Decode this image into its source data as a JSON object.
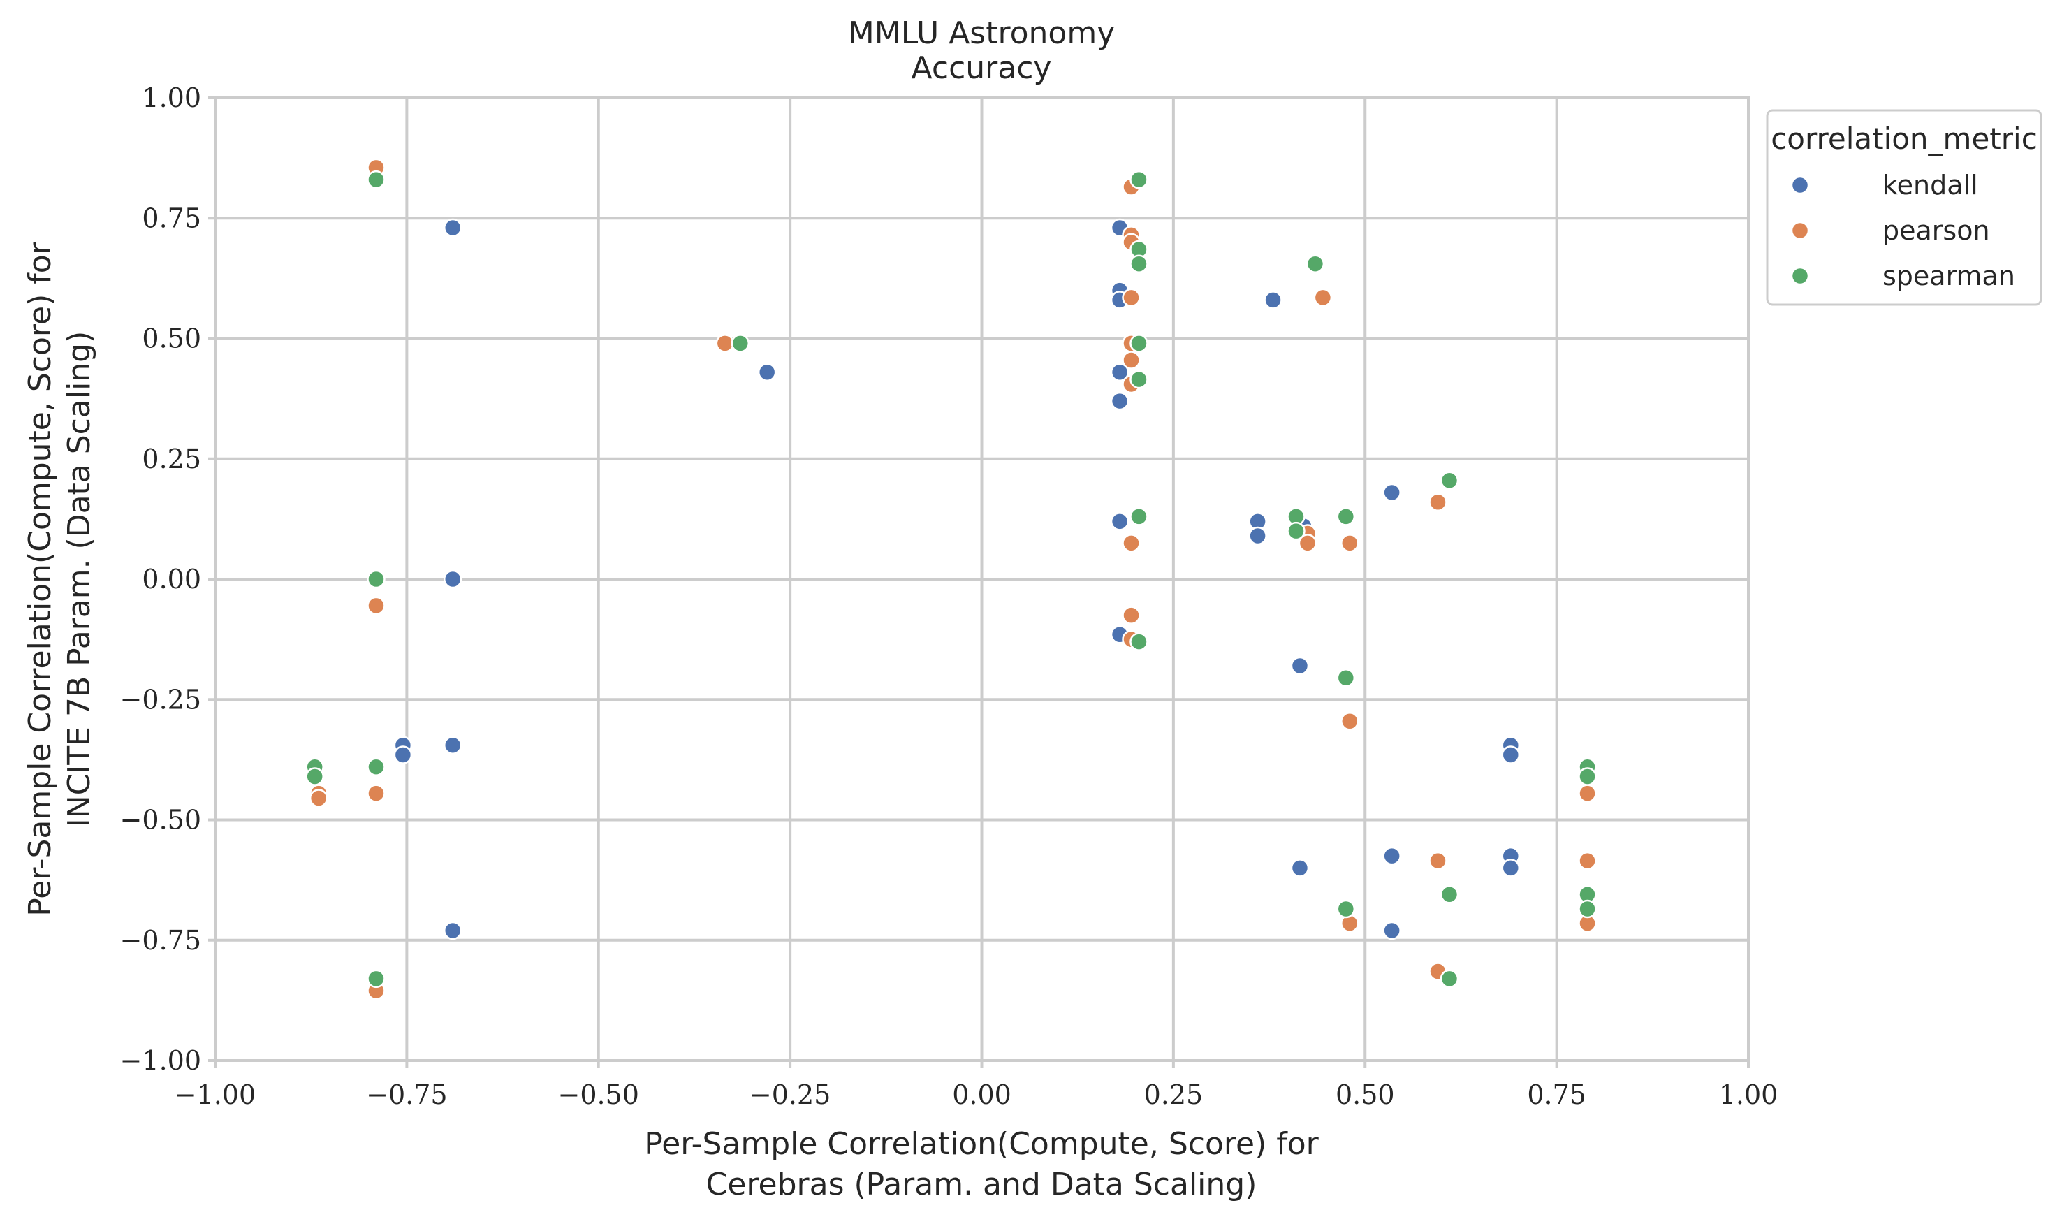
{
  "chart_data": {
    "type": "scatter",
    "title": [
      "MMLU Astronomy",
      "Accuracy"
    ],
    "xlabel": [
      "Per-Sample Correlation(Compute, Score) for",
      "Cerebras (Param. and Data Scaling)"
    ],
    "ylabel": [
      "Per-Sample Correlation(Compute, Score) for",
      "INCITE 7B Param. (Data Scaling)"
    ],
    "xlim": [
      -1.0,
      1.0
    ],
    "ylim": [
      -1.0,
      1.0
    ],
    "xticks": [
      -1.0,
      -0.75,
      -0.5,
      -0.25,
      0.0,
      0.25,
      0.5,
      0.75,
      1.0
    ],
    "yticks": [
      -1.0,
      -0.75,
      -0.5,
      -0.25,
      0.0,
      0.25,
      0.5,
      0.75,
      1.0
    ],
    "xtick_labels": [
      "−1.00",
      "−0.75",
      "−0.50",
      "−0.25",
      "0.00",
      "0.25",
      "0.50",
      "0.75",
      "1.00"
    ],
    "ytick_labels": [
      "−1.00",
      "−0.75",
      "−0.50",
      "−0.25",
      "0.00",
      "0.25",
      "0.50",
      "0.75",
      "1.00"
    ],
    "grid": true,
    "legend": {
      "title": "correlation_metric",
      "placement": "outside-top-right"
    },
    "series": [
      {
        "name": "kendall",
        "color": "#4c72b0",
        "points": [
          [
            -0.69,
            0.73
          ],
          [
            -0.28,
            0.43
          ],
          [
            0.18,
            0.73
          ],
          [
            0.18,
            0.6
          ],
          [
            0.18,
            0.58
          ],
          [
            0.18,
            0.43
          ],
          [
            0.18,
            0.37
          ],
          [
            0.38,
            0.58
          ],
          [
            -0.69,
            0.0
          ],
          [
            0.18,
            0.12
          ],
          [
            0.36,
            0.12
          ],
          [
            0.36,
            0.09
          ],
          [
            0.42,
            0.11
          ],
          [
            0.535,
            0.18
          ],
          [
            0.18,
            -0.115
          ],
          [
            0.415,
            -0.18
          ],
          [
            -0.755,
            -0.345
          ],
          [
            -0.755,
            -0.365
          ],
          [
            -0.69,
            -0.345
          ],
          [
            0.69,
            -0.345
          ],
          [
            0.69,
            -0.365
          ],
          [
            0.415,
            -0.6
          ],
          [
            0.535,
            -0.575
          ],
          [
            0.69,
            -0.575
          ],
          [
            0.69,
            -0.6
          ],
          [
            -0.69,
            -0.73
          ],
          [
            0.535,
            -0.73
          ]
        ]
      },
      {
        "name": "pearson",
        "color": "#dd8452",
        "points": [
          [
            -0.79,
            0.855
          ],
          [
            0.195,
            0.815
          ],
          [
            0.195,
            0.715
          ],
          [
            0.195,
            0.7
          ],
          [
            0.195,
            0.585
          ],
          [
            0.445,
            0.585
          ],
          [
            -0.335,
            0.49
          ],
          [
            0.195,
            0.49
          ],
          [
            0.195,
            0.455
          ],
          [
            0.195,
            0.405
          ],
          [
            0.595,
            0.16
          ],
          [
            0.425,
            0.095
          ],
          [
            0.425,
            0.075
          ],
          [
            0.195,
            0.075
          ],
          [
            0.48,
            0.075
          ],
          [
            -0.79,
            -0.055
          ],
          [
            0.195,
            -0.075
          ],
          [
            0.195,
            -0.125
          ],
          [
            0.48,
            -0.295
          ],
          [
            -0.865,
            -0.445
          ],
          [
            -0.865,
            -0.455
          ],
          [
            -0.79,
            -0.445
          ],
          [
            0.79,
            -0.445
          ],
          [
            0.595,
            -0.585
          ],
          [
            0.79,
            -0.585
          ],
          [
            0.48,
            -0.715
          ],
          [
            0.79,
            -0.715
          ],
          [
            0.595,
            -0.815
          ],
          [
            -0.79,
            -0.855
          ]
        ]
      },
      {
        "name": "spearman",
        "color": "#55a868",
        "points": [
          [
            -0.79,
            0.83
          ],
          [
            0.205,
            0.83
          ],
          [
            0.205,
            0.685
          ],
          [
            0.205,
            0.655
          ],
          [
            0.435,
            0.655
          ],
          [
            -0.315,
            0.49
          ],
          [
            0.205,
            0.49
          ],
          [
            0.205,
            0.415
          ],
          [
            0.61,
            0.205
          ],
          [
            0.205,
            0.13
          ],
          [
            0.41,
            0.13
          ],
          [
            0.475,
            0.13
          ],
          [
            0.41,
            0.1
          ],
          [
            -0.79,
            0.0
          ],
          [
            0.205,
            -0.13
          ],
          [
            0.475,
            -0.205
          ],
          [
            -0.87,
            -0.39
          ],
          [
            -0.87,
            -0.41
          ],
          [
            -0.79,
            -0.39
          ],
          [
            0.79,
            -0.39
          ],
          [
            0.79,
            -0.41
          ],
          [
            0.61,
            -0.655
          ],
          [
            0.79,
            -0.655
          ],
          [
            0.475,
            -0.685
          ],
          [
            0.79,
            -0.685
          ],
          [
            -0.79,
            -0.83
          ],
          [
            0.61,
            -0.83
          ]
        ]
      }
    ]
  }
}
